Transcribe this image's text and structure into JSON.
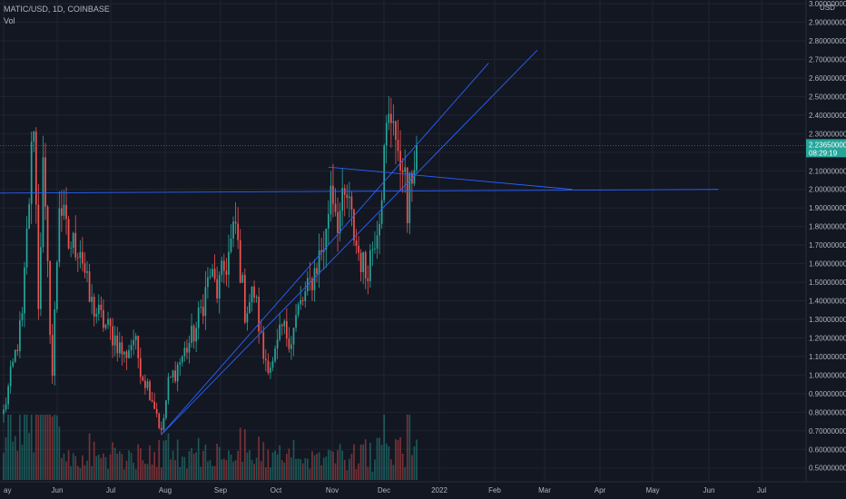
{
  "header": {
    "symbol_line": "MATIC/USD, 1D, COINBASE",
    "indicator": "Vol"
  },
  "chart_data": {
    "type": "candlestick",
    "currency_label": "USD",
    "y_ticks": [
      "3.00000000",
      "2.90000000",
      "2.80000000",
      "2.70000000",
      "2.60000000",
      "2.50000000",
      "2.40000000",
      "2.30000000",
      "2.20000000",
      "2.10000000",
      "2.00000000",
      "1.90000000",
      "1.80000000",
      "1.70000000",
      "1.60000000",
      "1.50000000",
      "1.40000000",
      "1.30000000",
      "1.20000000",
      "1.10000000",
      "1.00000000",
      "0.90000000",
      "0.80000000",
      "0.70000000",
      "0.60000000",
      "0.50000000"
    ],
    "ylim": [
      0.44,
      3.02
    ],
    "x_ticks": [
      "ay",
      "Jun",
      "Jul",
      "Aug",
      "Sep",
      "Oct",
      "Nov",
      "Dec",
      "2022",
      "Feb",
      "Mar",
      "Apr",
      "May",
      "Jun",
      "Jul"
    ],
    "last_price": {
      "value": "2.23650000",
      "countdown": "08:29:19"
    },
    "colors": {
      "up": "#26a69a",
      "down": "#ef5350",
      "background": "#131722",
      "grid": "#1f2433",
      "trendline": "#2962ff",
      "price_tag": "#26a69a"
    },
    "swing_points": [
      {
        "d": 0,
        "p": 0.8
      },
      {
        "d": 8,
        "p": 1.3
      },
      {
        "d": 13,
        "p": 2.4
      },
      {
        "d": 15,
        "p": 1.4
      },
      {
        "d": 17,
        "p": 2.1
      },
      {
        "d": 21,
        "p": 1.0
      },
      {
        "d": 24,
        "p": 1.95
      },
      {
        "d": 28,
        "p": 1.7
      },
      {
        "d": 33,
        "p": 1.7
      },
      {
        "d": 37,
        "p": 1.4
      },
      {
        "d": 42,
        "p": 1.3
      },
      {
        "d": 48,
        "p": 1.2
      },
      {
        "d": 52,
        "p": 1.1
      },
      {
        "d": 56,
        "p": 1.2
      },
      {
        "d": 60,
        "p": 1.0
      },
      {
        "d": 63,
        "p": 0.92
      },
      {
        "d": 66,
        "p": 0.8
      },
      {
        "d": 68,
        "p": 0.68
      },
      {
        "d": 71,
        "p": 0.95
      },
      {
        "d": 75,
        "p": 1.05
      },
      {
        "d": 79,
        "p": 1.15
      },
      {
        "d": 83,
        "p": 1.25
      },
      {
        "d": 86,
        "p": 1.4
      },
      {
        "d": 89,
        "p": 1.55
      },
      {
        "d": 92,
        "p": 1.45
      },
      {
        "d": 96,
        "p": 1.6
      },
      {
        "d": 100,
        "p": 1.8
      },
      {
        "d": 104,
        "p": 1.35
      },
      {
        "d": 108,
        "p": 1.45
      },
      {
        "d": 112,
        "p": 1.1
      },
      {
        "d": 116,
        "p": 1.05
      },
      {
        "d": 120,
        "p": 1.25
      },
      {
        "d": 124,
        "p": 1.2
      },
      {
        "d": 127,
        "p": 1.35
      },
      {
        "d": 131,
        "p": 1.45
      },
      {
        "d": 135,
        "p": 1.6
      },
      {
        "d": 139,
        "p": 1.75
      },
      {
        "d": 141,
        "p": 2.05
      },
      {
        "d": 144,
        "p": 1.85
      },
      {
        "d": 148,
        "p": 1.95
      },
      {
        "d": 152,
        "p": 1.7
      },
      {
        "d": 156,
        "p": 1.55
      },
      {
        "d": 159,
        "p": 1.7
      },
      {
        "d": 162,
        "p": 1.9
      },
      {
        "d": 165,
        "p": 2.3
      },
      {
        "d": 168,
        "p": 2.45
      },
      {
        "d": 170,
        "p": 2.1
      },
      {
        "d": 172,
        "p": 2.2
      },
      {
        "d": 174,
        "p": 1.85
      },
      {
        "d": 176,
        "p": 2.1
      },
      {
        "d": 178,
        "p": 2.2365
      }
    ],
    "trendlines": [
      {
        "d1": 68,
        "p1": 0.68,
        "d2": 230,
        "p2": 2.75
      },
      {
        "d1": 68,
        "p1": 0.68,
        "d2": 209,
        "p2": 2.68
      },
      {
        "d1": 140,
        "p1": 2.12,
        "d2": 245,
        "p2": 2.0
      },
      {
        "d1": -2,
        "p1": 1.98,
        "d2": 308,
        "p2": 2.0
      }
    ]
  }
}
